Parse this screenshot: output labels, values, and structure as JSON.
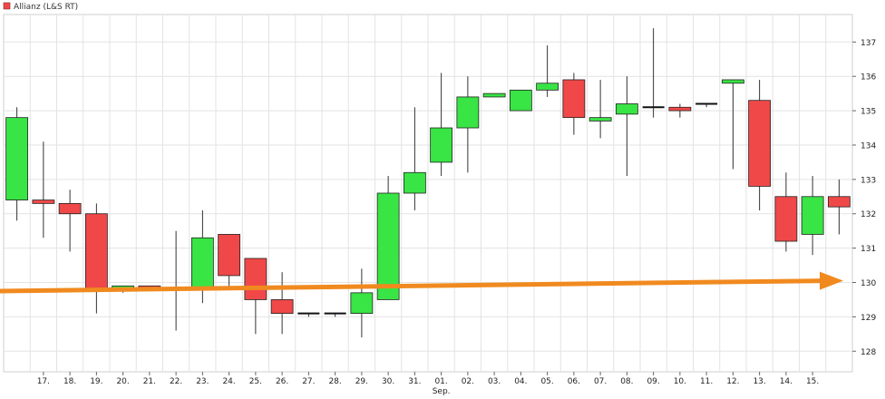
{
  "chart_data": {
    "type": "candlestick",
    "series_name": "Allianz (L&S RT)",
    "x_labels": [
      "",
      "17.",
      "18.",
      "19.",
      "20.",
      "21.",
      "22.",
      "23.",
      "24.",
      "25.",
      "26.",
      "27.",
      "28.",
      "29.",
      "30.",
      "31.",
      "01.",
      "02.",
      "03.",
      "04.",
      "05.",
      "06.",
      "07.",
      "08.",
      "09.",
      "10.",
      "11.",
      "12.",
      "13.",
      "14.",
      "15.",
      ""
    ],
    "x_month_label": "Sep.",
    "y_ticks": [
      128,
      129,
      130,
      131,
      132,
      133,
      134,
      135,
      136,
      137
    ],
    "ylim": [
      127.4,
      137.8
    ],
    "grid": true,
    "candles": [
      {
        "o": 132.4,
        "h": 135.1,
        "l": 131.8,
        "c": 134.8
      },
      {
        "o": 132.4,
        "h": 134.1,
        "l": 131.3,
        "c": 132.3
      },
      {
        "o": 132.3,
        "h": 132.7,
        "l": 130.9,
        "c": 132.0
      },
      {
        "o": 132.0,
        "h": 132.3,
        "l": 129.1,
        "c": 129.8
      },
      {
        "o": 129.8,
        "h": 129.9,
        "l": 129.7,
        "c": 129.9
      },
      {
        "o": 129.9,
        "h": 129.9,
        "l": 129.8,
        "c": 129.8
      },
      {
        "o": 129.8,
        "h": 131.5,
        "l": 128.6,
        "c": 129.8
      },
      {
        "o": 129.8,
        "h": 132.1,
        "l": 129.4,
        "c": 131.3
      },
      {
        "o": 131.4,
        "h": 131.4,
        "l": 129.8,
        "c": 130.2
      },
      {
        "o": 130.7,
        "h": 130.7,
        "l": 128.5,
        "c": 129.5
      },
      {
        "o": 129.5,
        "h": 130.3,
        "l": 128.5,
        "c": 129.1
      },
      {
        "o": 129.1,
        "h": 129.1,
        "l": 129.0,
        "c": 129.1
      },
      {
        "o": 129.1,
        "h": 129.1,
        "l": 129.0,
        "c": 129.1
      },
      {
        "o": 129.1,
        "h": 130.4,
        "l": 128.4,
        "c": 129.7
      },
      {
        "o": 129.5,
        "h": 133.1,
        "l": 129.5,
        "c": 132.6
      },
      {
        "o": 132.6,
        "h": 135.1,
        "l": 132.1,
        "c": 133.2
      },
      {
        "o": 133.5,
        "h": 136.1,
        "l": 133.1,
        "c": 134.5
      },
      {
        "o": 134.5,
        "h": 136.0,
        "l": 133.2,
        "c": 135.4
      },
      {
        "o": 135.4,
        "h": 135.5,
        "l": 135.4,
        "c": 135.5
      },
      {
        "o": 135.0,
        "h": 135.6,
        "l": 135.0,
        "c": 135.6
      },
      {
        "o": 135.6,
        "h": 136.9,
        "l": 135.4,
        "c": 135.8
      },
      {
        "o": 135.9,
        "h": 136.1,
        "l": 134.3,
        "c": 134.8
      },
      {
        "o": 134.7,
        "h": 135.9,
        "l": 134.2,
        "c": 134.8
      },
      {
        "o": 134.9,
        "h": 136.0,
        "l": 133.1,
        "c": 135.2
      },
      {
        "o": 135.1,
        "h": 137.4,
        "l": 134.8,
        "c": 135.1
      },
      {
        "o": 135.1,
        "h": 135.2,
        "l": 134.8,
        "c": 135.0
      },
      {
        "o": 135.2,
        "h": 135.2,
        "l": 135.1,
        "c": 135.2
      },
      {
        "o": 135.8,
        "h": 135.9,
        "l": 133.3,
        "c": 135.9
      },
      {
        "o": 135.3,
        "h": 135.9,
        "l": 132.1,
        "c": 132.8
      },
      {
        "o": 132.5,
        "h": 133.2,
        "l": 130.9,
        "c": 131.2
      },
      {
        "o": 131.4,
        "h": 133.1,
        "l": 130.8,
        "c": 132.5
      },
      {
        "o": 132.5,
        "h": 133.0,
        "l": 131.4,
        "c": 132.2
      }
    ],
    "up_color": "#39e445",
    "down_color": "#f04848",
    "trendline": {
      "color": "#f08a1f",
      "start_y": 129.75,
      "end_y": 130.05
    }
  }
}
